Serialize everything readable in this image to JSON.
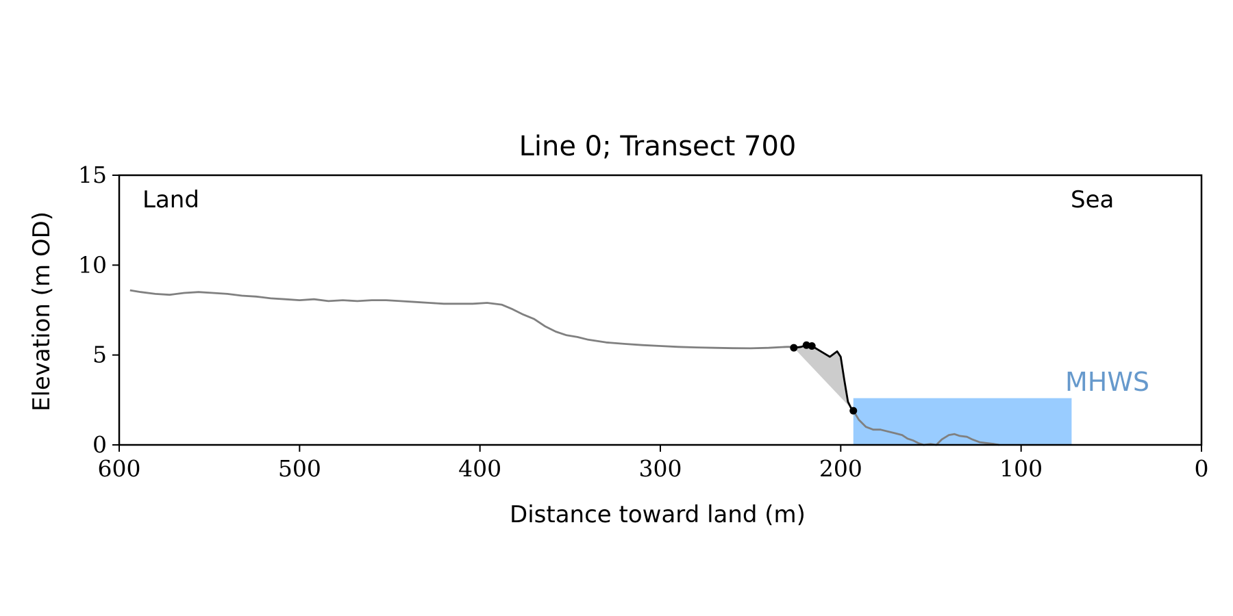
{
  "chart_data": {
    "type": "line",
    "title": "Line 0; Transect 700",
    "xlabel": "Distance toward land (m)",
    "ylabel": "Elevation (m OD)",
    "xlim": [
      600,
      0
    ],
    "ylim": [
      0,
      15
    ],
    "x_ticks": [
      600,
      500,
      400,
      300,
      200,
      100,
      0
    ],
    "y_ticks": [
      0,
      5,
      10,
      15
    ],
    "grid": false,
    "annotations": {
      "land": "Land",
      "sea": "Sea",
      "mhws": "MHWS"
    },
    "mhws": {
      "elevation": 2.6,
      "x_from": 193,
      "x_to": 72
    },
    "colors": {
      "profile": "#808080",
      "cliff": "#000000",
      "fill": "#cccccc",
      "mhws": "#99ccff",
      "mhws_label": "#6699cc"
    },
    "series": [
      {
        "key": "profile",
        "x": [
          594,
          588,
          580,
          572,
          564,
          556,
          548,
          540,
          532,
          524,
          516,
          508,
          500,
          492,
          484,
          476,
          468,
          460,
          452,
          444,
          436,
          428,
          420,
          412,
          404,
          396,
          388,
          382,
          376,
          370,
          364,
          358,
          352,
          346,
          340,
          330,
          320,
          310,
          300,
          290,
          280,
          270,
          260,
          250,
          240,
          230,
          226
        ],
        "y": [
          8.6,
          8.5,
          8.4,
          8.35,
          8.45,
          8.5,
          8.45,
          8.4,
          8.3,
          8.25,
          8.15,
          8.1,
          8.05,
          8.1,
          8.0,
          8.05,
          8.0,
          8.05,
          8.05,
          8.0,
          7.95,
          7.9,
          7.85,
          7.85,
          7.85,
          7.9,
          7.8,
          7.55,
          7.25,
          7.0,
          6.6,
          6.3,
          6.1,
          6.0,
          5.85,
          5.7,
          5.62,
          5.55,
          5.5,
          5.45,
          5.42,
          5.4,
          5.38,
          5.37,
          5.4,
          5.45,
          5.45
        ]
      },
      {
        "key": "profile_lower",
        "x": [
          193,
          190,
          186,
          182,
          178,
          174,
          170,
          166,
          163,
          160,
          157,
          154,
          150,
          147,
          144,
          140,
          137,
          134,
          130,
          127,
          123,
          119,
          115,
          112
        ],
        "y": [
          1.9,
          1.4,
          1.0,
          0.85,
          0.85,
          0.75,
          0.65,
          0.55,
          0.35,
          0.25,
          0.1,
          0.0,
          0.05,
          0.0,
          0.3,
          0.55,
          0.6,
          0.5,
          0.45,
          0.3,
          0.15,
          0.1,
          0.05,
          0.0
        ]
      },
      {
        "key": "cliff",
        "x": [
          226,
          222,
          219,
          218,
          216,
          211,
          206,
          202,
          200,
          198,
          196,
          194,
          193
        ],
        "y": [
          5.4,
          5.45,
          5.55,
          5.5,
          5.5,
          5.2,
          4.9,
          5.2,
          4.9,
          3.6,
          2.4,
          2.0,
          1.9
        ]
      }
    ],
    "cliff_points": {
      "x": [
        226,
        219,
        216,
        193
      ],
      "y": [
        5.4,
        5.55,
        5.5,
        1.9
      ]
    }
  }
}
